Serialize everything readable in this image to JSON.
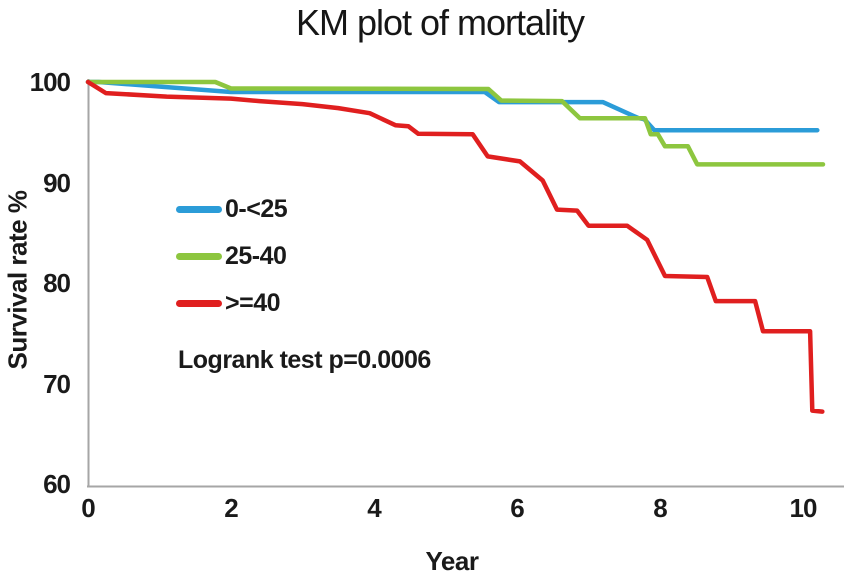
{
  "chart_data": {
    "type": "line",
    "title": "KM plot of mortality",
    "xlabel": "Year",
    "ylabel": "Survival rate %",
    "xlim": [
      0,
      10.5
    ],
    "ylim": [
      60,
      100
    ],
    "x_ticks": [
      "0",
      "2",
      "4",
      "6",
      "8",
      "10"
    ],
    "y_ticks": [
      "100",
      "90",
      "80",
      "70",
      "60"
    ],
    "grid": false,
    "legend_position": "inside-upper-left",
    "annotation": "Logrank test p=0.0006",
    "axis_color": "#a6a6a6",
    "text_color": "#1a1a1a",
    "series": [
      {
        "name": "0-<25",
        "color": "#2b9cd8",
        "points": [
          [
            0,
            100
          ],
          [
            0.15,
            100
          ],
          [
            2,
            99.0
          ],
          [
            5.55,
            99.0
          ],
          [
            5.75,
            98.0
          ],
          [
            7.2,
            98.0
          ],
          [
            7.7,
            96.4
          ],
          [
            7.78,
            96.3
          ],
          [
            7.92,
            95.2
          ],
          [
            10.2,
            95.2
          ]
        ]
      },
      {
        "name": "25-40",
        "color": "#8dc63f",
        "points": [
          [
            0,
            100
          ],
          [
            1.78,
            100
          ],
          [
            2.0,
            99.35
          ],
          [
            5.6,
            99.3
          ],
          [
            5.78,
            98.15
          ],
          [
            6.63,
            98.1
          ],
          [
            6.88,
            96.4
          ],
          [
            7.79,
            96.4
          ],
          [
            7.87,
            94.8
          ],
          [
            7.97,
            94.8
          ],
          [
            8.07,
            93.6
          ],
          [
            8.39,
            93.6
          ],
          [
            8.52,
            91.8
          ],
          [
            10.28,
            91.8
          ]
        ]
      },
      {
        "name": ">=40",
        "color": "#e01f1f",
        "points": [
          [
            0,
            100
          ],
          [
            0.25,
            98.9
          ],
          [
            1.1,
            98.55
          ],
          [
            2.0,
            98.35
          ],
          [
            2.4,
            98.1
          ],
          [
            3.0,
            97.8
          ],
          [
            3.5,
            97.4
          ],
          [
            3.94,
            96.9
          ],
          [
            4.3,
            95.7
          ],
          [
            4.48,
            95.6
          ],
          [
            4.62,
            94.85
          ],
          [
            5.38,
            94.8
          ],
          [
            5.59,
            92.6
          ],
          [
            6.04,
            92.1
          ],
          [
            6.36,
            90.2
          ],
          [
            6.56,
            87.3
          ],
          [
            6.84,
            87.2
          ],
          [
            7.0,
            85.7
          ],
          [
            7.54,
            85.7
          ],
          [
            7.82,
            84.3
          ],
          [
            8.07,
            80.7
          ],
          [
            8.66,
            80.6
          ],
          [
            8.78,
            78.2
          ],
          [
            9.33,
            78.2
          ],
          [
            9.44,
            75.2
          ],
          [
            10.1,
            75.2
          ],
          [
            10.13,
            67.3
          ],
          [
            10.27,
            67.2
          ]
        ]
      }
    ]
  }
}
